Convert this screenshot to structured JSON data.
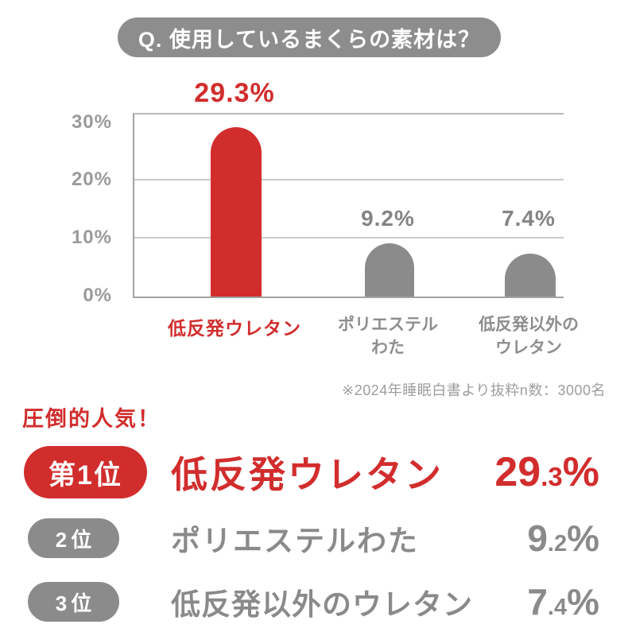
{
  "header": {
    "question": "Q. 使用しているまくらの素材は？"
  },
  "chart_data": {
    "type": "bar",
    "title": "Q. 使用しているまくらの素材は？",
    "categories": [
      [
        "低反発ウレタン"
      ],
      [
        "ポリエステル",
        "わた"
      ],
      [
        "低反発以外の",
        "ウレタン"
      ]
    ],
    "values": [
      29.3,
      9.2,
      7.4
    ],
    "value_labels": [
      "29.3%",
      "9.2%",
      "7.4%"
    ],
    "bar_colors": [
      "#d22d2d",
      "#8b8b8b",
      "#8b8b8b"
    ],
    "ylim": [
      0,
      32
    ],
    "yticks": [
      "0%",
      "10%",
      "20%",
      "30%"
    ],
    "ytick_values": [
      0,
      10,
      20,
      30
    ],
    "grid": true,
    "legend": false,
    "xlabel": "",
    "ylabel": "",
    "source_note": "※2024年睡眠白書より抜粋n数：3000名"
  },
  "colors": {
    "accent_red": "#d22d2d",
    "gray": "#8b8b8b",
    "badge_gray": "#8d8d8d",
    "text_white": "#ffffff"
  },
  "ranking": {
    "headline": "圧倒的人気！",
    "rows": [
      {
        "rank_label": "第1位",
        "name": "低反発ウレタン",
        "value_int": "29",
        "value_dec": ".3",
        "value_pct": "%"
      },
      {
        "rank_label": "2位",
        "name": "ポリエステルわた",
        "value_int": "9",
        "value_dec": ".2",
        "value_pct": "%"
      },
      {
        "rank_label": "3位",
        "name": "低反発以外のウレタン",
        "value_int": "7",
        "value_dec": ".4",
        "value_pct": "%"
      }
    ]
  }
}
